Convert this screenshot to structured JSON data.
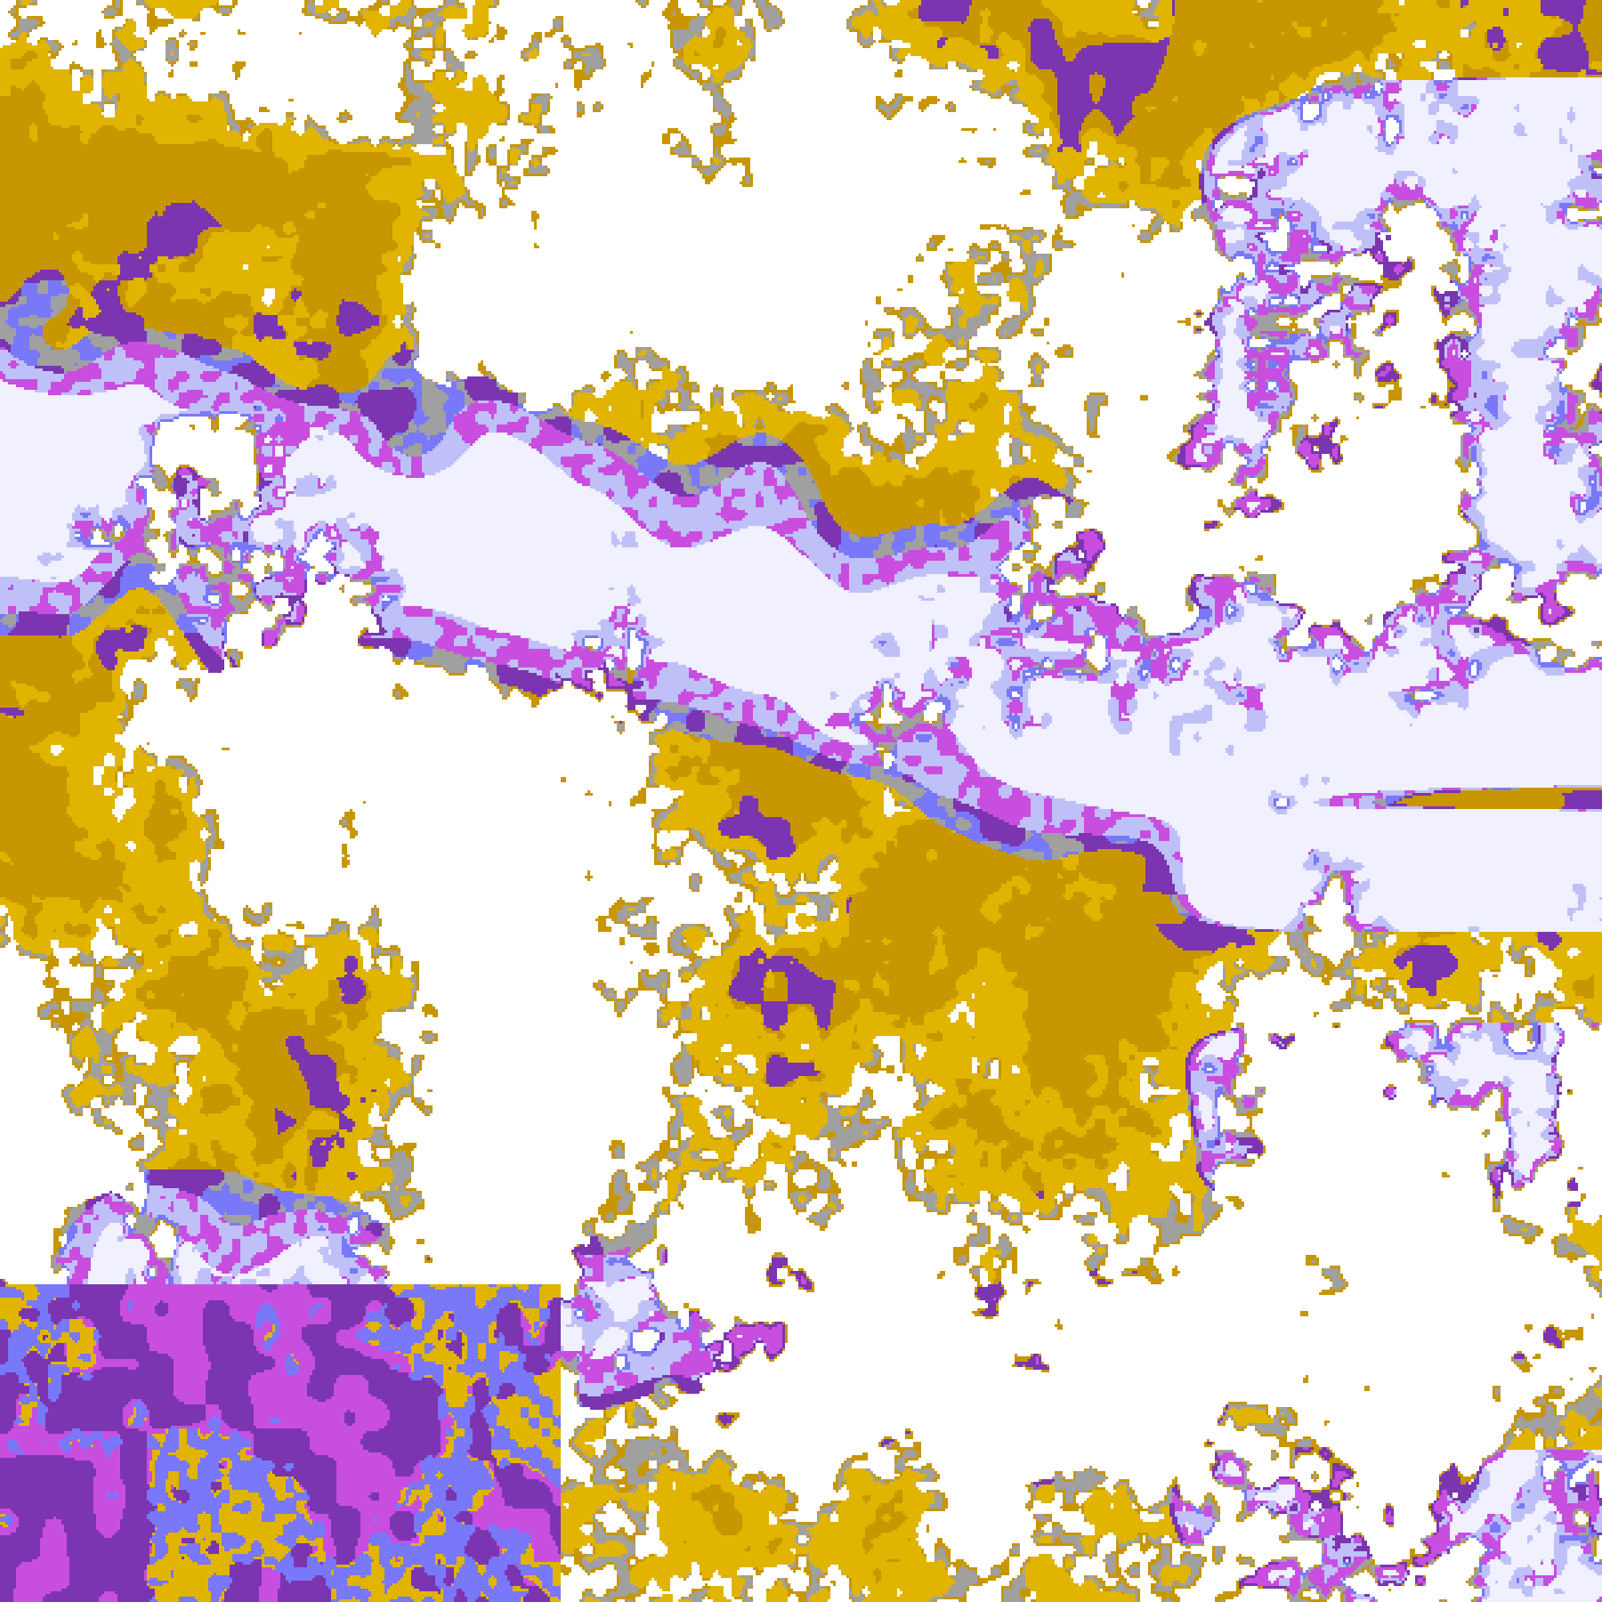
{
  "map": {
    "palette": {
      "clear": "#ffffff",
      "gold": "#e0b400",
      "dark_gold": "#c89600",
      "grey": "#a0a0a0",
      "light_grey": "#c8c8d0",
      "lavender": "#c0c0f8",
      "pale_lavender": "#f0f0ff",
      "blue_violet": "#7878f8",
      "magenta": "#c84ee0",
      "purple": "#7b35b0"
    }
  }
}
